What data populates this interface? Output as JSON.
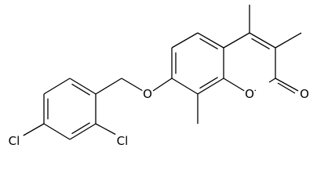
{
  "atoms": [
    "Cl",
    "Cl",
    "O",
    "O",
    "O"
  ]
}
